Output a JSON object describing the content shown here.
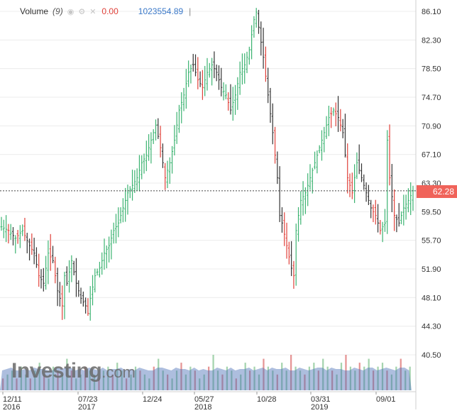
{
  "watermark": {
    "brand": "Investing",
    "suffix": ".com"
  },
  "legend": {
    "indicator": "Volume",
    "param": "(9)",
    "value_red": "0.00",
    "value_blue": "1023554.89",
    "separator": "|"
  },
  "last_price": {
    "label": "62.28",
    "value": 62.28
  },
  "colors": {
    "up": "#3cb371",
    "down": "#e0413a",
    "neutral": "#333333",
    "last_price_bg": "#f0635a",
    "volume_area": "#4a6fb5",
    "grid": "#ececec"
  },
  "chart_data": {
    "type": "ohlc",
    "ylim": [
      40.5,
      86.1
    ],
    "y_ticks": [
      "86.10",
      "82.30",
      "78.50",
      "74.70",
      "70.90",
      "67.10",
      "63.30",
      "59.50",
      "55.70",
      "51.90",
      "48.10",
      "44.30",
      "40.50"
    ],
    "x_ticks": [
      {
        "label": "12/11",
        "year": "2016"
      },
      {
        "label": "07/23",
        "year": "2017"
      },
      {
        "label": "12/24",
        "year": ""
      },
      {
        "label": "05/27",
        "year": "2018"
      },
      {
        "label": "10/28",
        "year": ""
      },
      {
        "label": "03/31",
        "year": "2019"
      },
      {
        "label": "09/01",
        "year": ""
      }
    ],
    "close_path": [
      [
        0,
        57.5
      ],
      [
        3,
        57
      ],
      [
        6,
        56
      ],
      [
        9,
        57
      ],
      [
        12,
        55
      ],
      [
        14,
        54
      ],
      [
        16,
        51
      ],
      [
        18,
        50
      ],
      [
        20,
        54
      ],
      [
        22,
        53
      ],
      [
        24,
        49
      ],
      [
        26,
        47
      ],
      [
        27,
        51
      ],
      [
        28,
        50
      ],
      [
        30,
        53
      ],
      [
        32,
        50
      ],
      [
        34,
        48
      ],
      [
        36,
        47
      ],
      [
        37,
        46
      ],
      [
        38,
        48
      ],
      [
        40,
        51
      ],
      [
        42,
        52
      ],
      [
        44,
        54
      ],
      [
        46,
        55
      ],
      [
        48,
        57
      ],
      [
        50,
        58
      ],
      [
        52,
        60
      ],
      [
        53,
        61
      ],
      [
        54,
        62
      ],
      [
        56,
        63
      ],
      [
        58,
        64
      ],
      [
        60,
        66
      ],
      [
        62,
        67
      ],
      [
        64,
        69
      ],
      [
        65,
        70
      ],
      [
        66,
        71
      ],
      [
        68,
        68
      ],
      [
        70,
        64
      ],
      [
        72,
        66
      ],
      [
        74,
        69
      ],
      [
        76,
        73
      ],
      [
        78,
        75
      ],
      [
        80,
        78
      ],
      [
        82,
        79
      ],
      [
        84,
        77
      ],
      [
        86,
        76
      ],
      [
        88,
        78
      ],
      [
        90,
        79
      ],
      [
        92,
        78
      ],
      [
        94,
        76
      ],
      [
        96,
        75
      ],
      [
        98,
        73
      ],
      [
        100,
        75
      ],
      [
        102,
        78
      ],
      [
        104,
        79
      ],
      [
        106,
        81
      ],
      [
        108,
        85
      ],
      [
        109,
        86
      ],
      [
        110,
        84
      ],
      [
        112,
        80
      ],
      [
        114,
        75
      ],
      [
        116,
        70
      ],
      [
        118,
        64
      ],
      [
        119,
        59
      ],
      [
        120,
        58
      ],
      [
        122,
        55
      ],
      [
        124,
        52
      ],
      [
        125,
        51
      ],
      [
        126,
        57
      ],
      [
        128,
        61
      ],
      [
        130,
        62
      ],
      [
        132,
        64
      ],
      [
        134,
        66
      ],
      [
        136,
        68
      ],
      [
        138,
        70
      ],
      [
        140,
        72
      ],
      [
        142,
        73
      ],
      [
        144,
        72
      ],
      [
        146,
        70
      ],
      [
        148,
        64
      ],
      [
        150,
        62
      ],
      [
        152,
        66
      ],
      [
        154,
        64
      ],
      [
        156,
        62
      ],
      [
        158,
        60
      ],
      [
        160,
        59
      ],
      [
        162,
        57
      ],
      [
        164,
        58
      ],
      [
        165,
        69
      ],
      [
        166,
        64
      ],
      [
        168,
        59
      ],
      [
        170,
        58
      ],
      [
        172,
        60
      ],
      [
        174,
        61
      ],
      [
        176,
        62.28
      ]
    ],
    "volume": [
      3,
      4,
      5,
      3,
      6,
      4,
      3,
      5,
      7,
      4,
      3,
      6,
      5,
      4,
      8,
      5,
      3,
      4,
      6,
      5,
      4,
      3,
      5,
      6,
      4,
      7,
      5,
      3,
      4,
      6,
      5,
      4,
      3,
      6,
      8,
      5,
      4,
      3,
      5,
      7,
      4,
      6,
      5,
      3,
      4,
      6,
      9,
      5,
      4,
      6,
      5,
      3,
      4,
      7,
      5,
      6,
      4,
      8,
      6,
      5,
      4,
      7,
      5,
      9,
      6,
      5,
      4,
      6,
      7,
      5,
      8,
      6,
      5,
      4,
      7,
      9,
      6,
      5,
      7,
      6,
      8,
      5,
      6,
      7,
      5,
      4,
      6,
      8,
      5,
      6
    ]
  }
}
